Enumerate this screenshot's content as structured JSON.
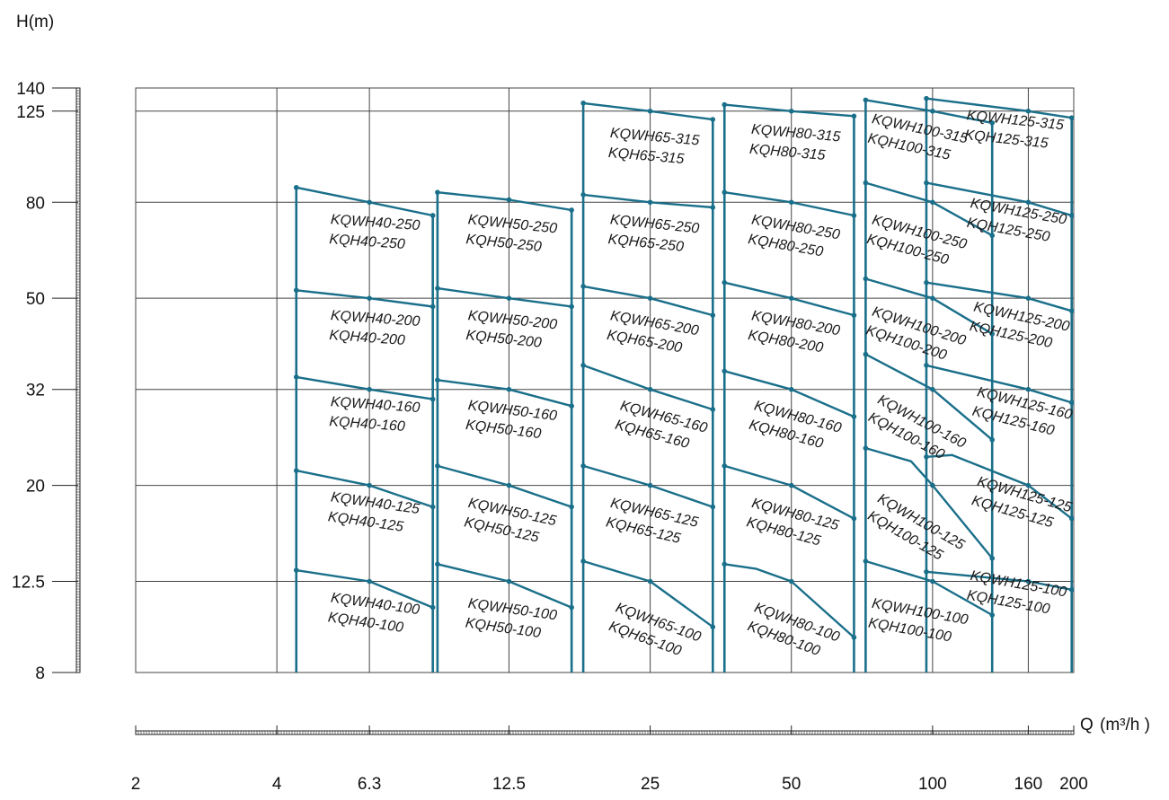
{
  "chart_data": {
    "type": "line",
    "title": "",
    "xlabel_prefix": "Q",
    "xlabel_unit": "(m³/h )",
    "ylabel": "H(m)",
    "x_scale": "log",
    "y_scale": "log",
    "xlim": [
      2,
      200
    ],
    "ylim": [
      8,
      140
    ],
    "x_ticks": [
      2,
      4,
      6.3,
      12.5,
      25,
      50,
      100,
      160,
      200
    ],
    "x_tick_labels": [
      "2",
      "4",
      "6.3",
      "12.5",
      "25",
      "50",
      "100",
      "160",
      "200"
    ],
    "y_ticks": [
      8,
      12.5,
      20,
      32,
      50,
      80,
      125,
      140
    ],
    "y_tick_labels": [
      "8",
      "12.5",
      "20",
      "32",
      "50",
      "80",
      "125",
      "140"
    ],
    "grid": true,
    "colors": {
      "curve": "#1a6f8a",
      "grid": "#444444",
      "text": "#111111"
    },
    "columns": [
      {
        "x_left": 4.4,
        "x_right": 8.6,
        "curves": [
          {
            "points": [
              [
                4.4,
                86
              ],
              [
                6.3,
                80
              ],
              [
                8.6,
                75
              ]
            ]
          },
          {
            "points": [
              [
                4.4,
                52
              ],
              [
                6.3,
                50
              ],
              [
                8.6,
                48
              ]
            ]
          },
          {
            "points": [
              [
                4.4,
                34
              ],
              [
                6.3,
                32
              ],
              [
                8.6,
                30.5
              ]
            ]
          },
          {
            "points": [
              [
                4.4,
                21.5
              ],
              [
                6.3,
                20
              ],
              [
                8.6,
                18
              ]
            ]
          },
          {
            "points": [
              [
                4.4,
                13.2
              ],
              [
                6.3,
                12.5
              ],
              [
                8.6,
                11
              ]
            ]
          }
        ],
        "labels": [
          {
            "lines": [
              "KQWH40-250",
              "KQH40-250"
            ],
            "x": 5.2,
            "h": 72,
            "rot": 4
          },
          {
            "lines": [
              "KQWH40-200",
              "KQH40-200"
            ],
            "x": 5.2,
            "h": 45,
            "rot": 4
          },
          {
            "lines": [
              "KQWH40-160",
              "KQH40-160"
            ],
            "x": 5.2,
            "h": 29.5,
            "rot": 4
          },
          {
            "lines": [
              "KQWH40-125",
              "KQH40-125"
            ],
            "x": 5.2,
            "h": 18.5,
            "rot": 8
          },
          {
            "lines": [
              "KQWH40-100",
              "KQH40-100"
            ],
            "x": 5.2,
            "h": 11.3,
            "rot": 8
          }
        ]
      },
      {
        "x_left": 8.8,
        "x_right": 17,
        "curves": [
          {
            "points": [
              [
                8.8,
                84
              ],
              [
                12.5,
                81
              ],
              [
                17,
                77
              ]
            ]
          },
          {
            "points": [
              [
                8.8,
                52.5
              ],
              [
                12.5,
                50
              ],
              [
                17,
                48
              ]
            ]
          },
          {
            "points": [
              [
                8.8,
                33.5
              ],
              [
                12.5,
                32
              ],
              [
                17,
                29.5
              ]
            ]
          },
          {
            "points": [
              [
                8.8,
                22
              ],
              [
                12.5,
                20
              ],
              [
                17,
                18
              ]
            ]
          },
          {
            "points": [
              [
                8.8,
                13.6
              ],
              [
                12.5,
                12.5
              ],
              [
                17,
                11
              ]
            ]
          }
        ],
        "labels": [
          {
            "lines": [
              "KQWH50-250",
              "KQH50-250"
            ],
            "x": 10.2,
            "h": 72,
            "rot": 6
          },
          {
            "lines": [
              "KQWH50-200",
              "KQH50-200"
            ],
            "x": 10.2,
            "h": 45,
            "rot": 6
          },
          {
            "lines": [
              "KQWH50-160",
              "KQH50-160"
            ],
            "x": 10.2,
            "h": 29,
            "rot": 7
          },
          {
            "lines": [
              "KQWH50-125",
              "KQH50-125"
            ],
            "x": 10.2,
            "h": 18,
            "rot": 12
          },
          {
            "lines": [
              "KQWH50-100",
              "KQH50-100"
            ],
            "x": 10.2,
            "h": 11,
            "rot": 8
          }
        ]
      },
      {
        "x_left": 18,
        "x_right": 34,
        "curves": [
          {
            "points": [
              [
                18,
                130
              ],
              [
                25,
                125
              ],
              [
                34,
                120
              ]
            ]
          },
          {
            "points": [
              [
                18,
                83
              ],
              [
                25,
                80
              ],
              [
                34,
                78
              ]
            ]
          },
          {
            "points": [
              [
                18,
                53
              ],
              [
                25,
                50
              ],
              [
                34,
                46
              ]
            ]
          },
          {
            "points": [
              [
                18,
                36
              ],
              [
                25,
                32
              ],
              [
                34,
                29
              ]
            ]
          },
          {
            "points": [
              [
                18,
                22
              ],
              [
                25,
                20
              ],
              [
                34,
                18
              ]
            ]
          },
          {
            "points": [
              [
                18,
                13.8
              ],
              [
                25,
                12.5
              ],
              [
                34,
                10
              ]
            ]
          }
        ],
        "labels": [
          {
            "lines": [
              "KQWH65-315",
              "KQH65-315"
            ],
            "x": 20.5,
            "h": 110,
            "rot": 5
          },
          {
            "lines": [
              "KQWH65-250",
              "KQH65-250"
            ],
            "x": 20.5,
            "h": 72,
            "rot": 6
          },
          {
            "lines": [
              "KQWH65-200",
              "KQH65-200"
            ],
            "x": 20.5,
            "h": 45,
            "rot": 10
          },
          {
            "lines": [
              "KQWH65-160",
              "KQH65-160"
            ],
            "x": 21.5,
            "h": 29,
            "rot": 15
          },
          {
            "lines": [
              "KQWH65-125",
              "KQH65-125"
            ],
            "x": 20.5,
            "h": 18,
            "rot": 13
          },
          {
            "lines": [
              "KQWH65-100",
              "KQH65-100"
            ],
            "x": 21,
            "h": 10.8,
            "rot": 20
          }
        ]
      },
      {
        "x_left": 36,
        "x_right": 68,
        "curves": [
          {
            "points": [
              [
                36,
                129
              ],
              [
                50,
                125
              ],
              [
                68,
                122
              ]
            ]
          },
          {
            "points": [
              [
                36,
                84
              ],
              [
                50,
                80
              ],
              [
                68,
                75
              ]
            ]
          },
          {
            "points": [
              [
                36,
                54
              ],
              [
                50,
                50
              ],
              [
                68,
                46
              ]
            ]
          },
          {
            "points": [
              [
                36,
                35
              ],
              [
                50,
                32
              ],
              [
                68,
                28
              ]
            ]
          },
          {
            "points": [
              [
                36,
                22
              ],
              [
                50,
                20
              ],
              [
                68,
                17
              ]
            ]
          },
          {
            "points": [
              [
                36,
                13.6
              ],
              [
                42,
                13.3
              ],
              [
                50,
                12.5
              ],
              [
                68,
                9.5
              ]
            ]
          }
        ],
        "labels": [
          {
            "lines": [
              "KQWH80-315",
              "KQH80-315"
            ],
            "x": 41,
            "h": 112,
            "rot": 5
          },
          {
            "lines": [
              "KQWH80-250",
              "KQH80-250"
            ],
            "x": 41,
            "h": 72,
            "rot": 10
          },
          {
            "lines": [
              "KQWH80-200",
              "KQH80-200"
            ],
            "x": 41,
            "h": 45,
            "rot": 10
          },
          {
            "lines": [
              "KQWH80-160",
              "KQH80-160"
            ],
            "x": 41.5,
            "h": 29,
            "rot": 15
          },
          {
            "lines": [
              "KQWH80-125",
              "KQH80-125"
            ],
            "x": 41,
            "h": 18,
            "rot": 15
          },
          {
            "lines": [
              "KQWH80-100",
              "KQH80-100"
            ],
            "x": 41.5,
            "h": 10.8,
            "rot": 20
          }
        ]
      },
      {
        "x_left": 72,
        "x_right": 134,
        "curves": [
          {
            "points": [
              [
                72,
                132
              ],
              [
                100,
                125
              ],
              [
                134,
                118
              ]
            ]
          },
          {
            "points": [
              [
                72,
                88
              ],
              [
                100,
                80
              ],
              [
                134,
                68
              ]
            ]
          },
          {
            "points": [
              [
                72,
                55
              ],
              [
                100,
                50
              ],
              [
                134,
                42
              ]
            ]
          },
          {
            "points": [
              [
                72,
                38
              ],
              [
                100,
                32
              ],
              [
                134,
                25
              ]
            ]
          },
          {
            "points": [
              [
                72,
                24
              ],
              [
                90,
                22.5
              ],
              [
                100,
                20
              ],
              [
                134,
                14
              ]
            ]
          },
          {
            "points": [
              [
                72,
                13.8
              ],
              [
                100,
                12.5
              ],
              [
                134,
                10.6
              ]
            ]
          }
        ],
        "labels": [
          {
            "lines": [
              "KQWH100-315",
              "KQH100-315"
            ],
            "x": 74,
            "h": 118,
            "rot": 12
          },
          {
            "lines": [
              "KQWH100-250",
              "KQH100-250"
            ],
            "x": 74,
            "h": 72,
            "rot": 15
          },
          {
            "lines": [
              "KQWH100-200",
              "KQH100-200"
            ],
            "x": 74,
            "h": 46,
            "rot": 18
          },
          {
            "lines": [
              "KQWH100-160",
              "KQH100-160"
            ],
            "x": 76,
            "h": 30,
            "rot": 28
          },
          {
            "lines": [
              "KQWH100-125",
              "KQH100-125"
            ],
            "x": 76,
            "h": 18.5,
            "rot": 30
          },
          {
            "lines": [
              "KQWH100-100",
              "KQH100-100"
            ],
            "x": 74,
            "h": 11,
            "rot": 10
          }
        ]
      },
      {
        "x_left": 97,
        "x_right": 198,
        "curves": [
          {
            "points": [
              [
                97,
                133
              ],
              [
                160,
                125
              ],
              [
                198,
                121
              ]
            ]
          },
          {
            "points": [
              [
                97,
                88
              ],
              [
                160,
                80
              ],
              [
                198,
                75
              ]
            ]
          },
          {
            "points": [
              [
                97,
                54
              ],
              [
                160,
                50
              ],
              [
                198,
                47
              ]
            ]
          },
          {
            "points": [
              [
                97,
                36
              ],
              [
                160,
                32
              ],
              [
                198,
                30
              ]
            ]
          },
          {
            "points": [
              [
                97,
                23
              ],
              [
                110,
                23.2
              ],
              [
                160,
                20
              ],
              [
                198,
                17
              ]
            ]
          },
          {
            "points": [
              [
                97,
                13.1
              ],
              [
                160,
                12.5
              ],
              [
                198,
                12
              ]
            ]
          }
        ],
        "labels": [
          {
            "lines": [
              "KQWH125-315",
              "KQH125-315"
            ],
            "x": 118,
            "h": 120,
            "rot": 6
          },
          {
            "lines": [
              "KQWH125-250",
              "KQH125-250"
            ],
            "x": 120,
            "h": 78,
            "rot": 10
          },
          {
            "lines": [
              "KQWH125-200",
              "KQH125-200"
            ],
            "x": 122,
            "h": 47,
            "rot": 12
          },
          {
            "lines": [
              "KQWH125-160",
              "KQH125-160"
            ],
            "x": 124,
            "h": 31,
            "rot": 14
          },
          {
            "lines": [
              "KQWH125-125",
              "KQH125-125"
            ],
            "x": 124,
            "h": 20,
            "rot": 16
          },
          {
            "lines": [
              "KQWH125-100",
              "KQH125-100"
            ],
            "x": 120,
            "h": 12.6,
            "rot": 10
          }
        ]
      }
    ]
  }
}
